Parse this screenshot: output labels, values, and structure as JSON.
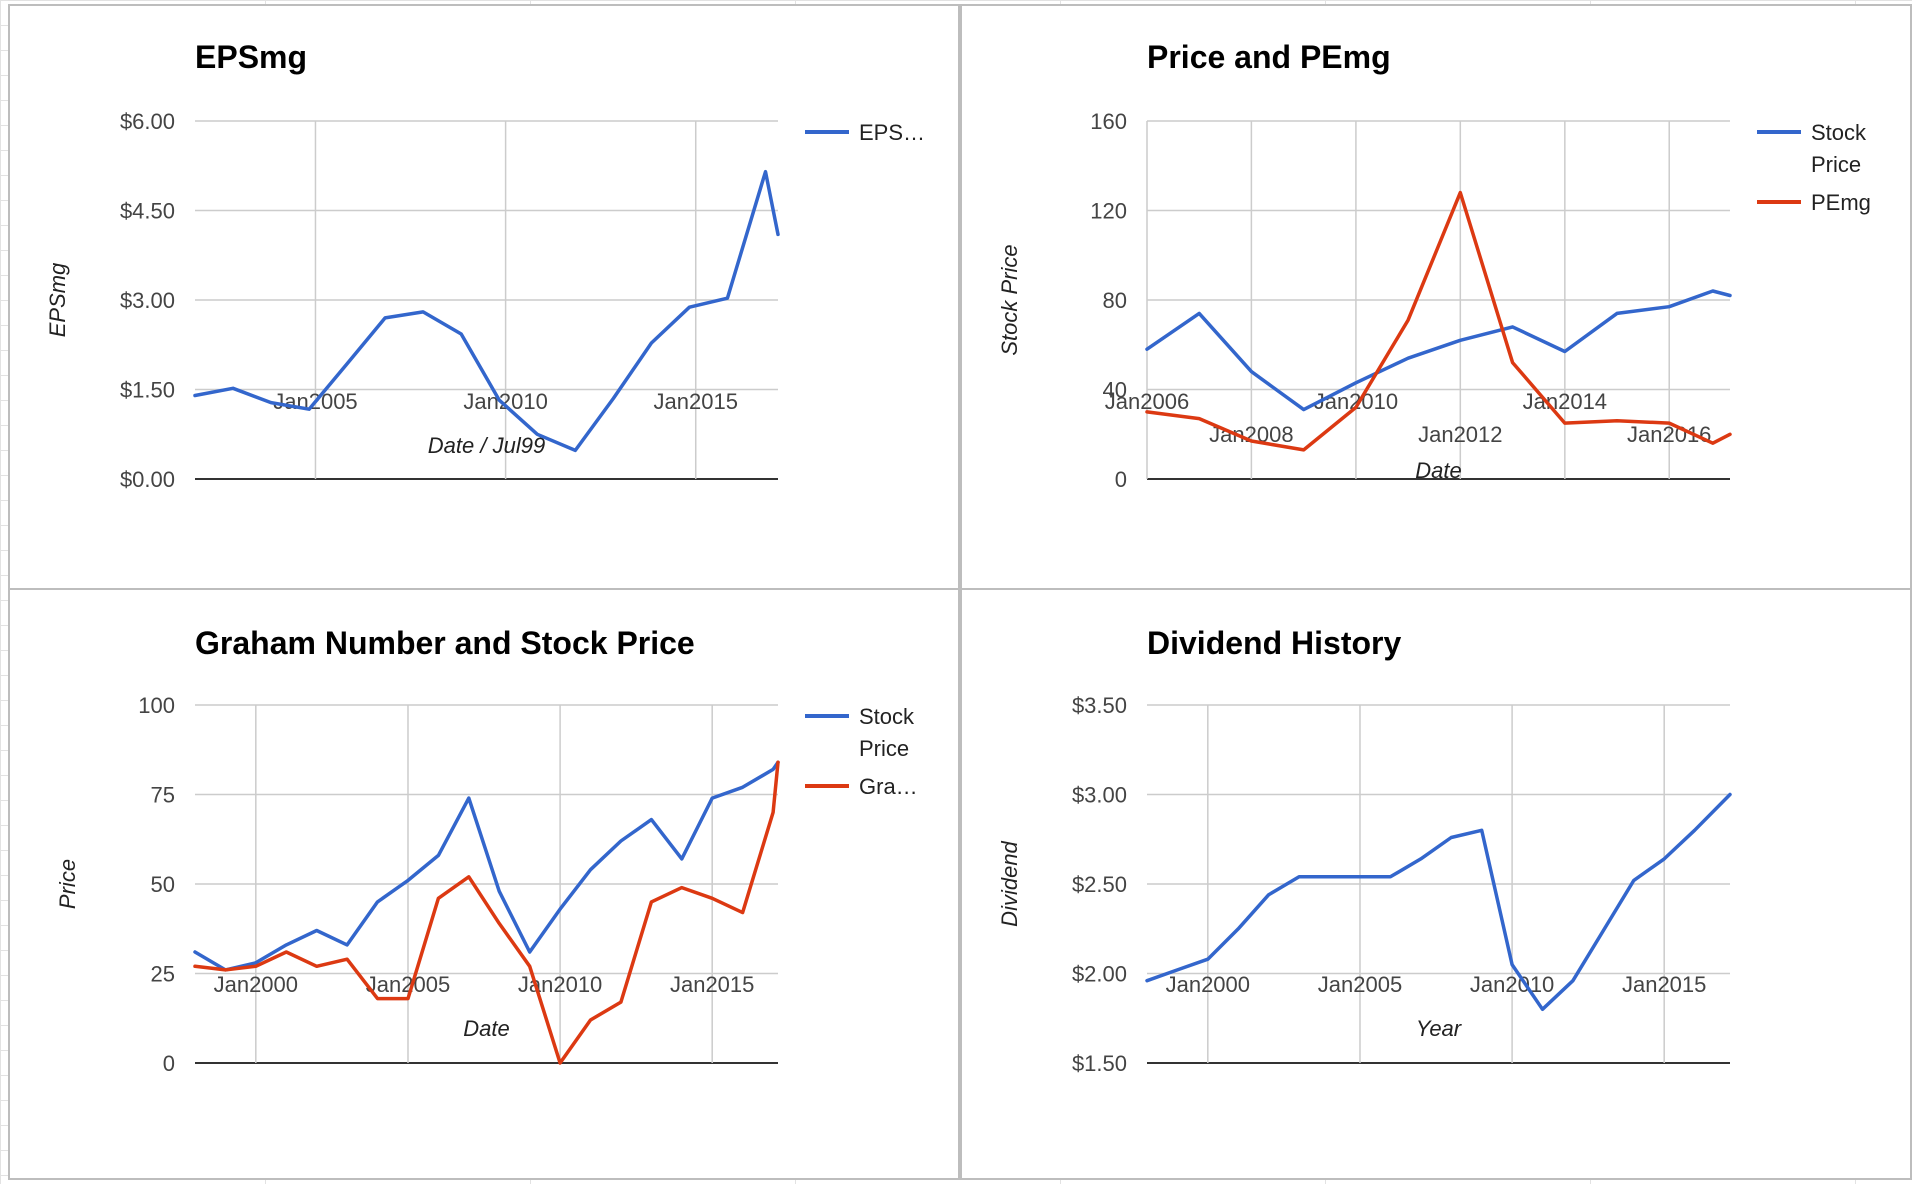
{
  "chart_data": [
    {
      "type": "line",
      "title": "EPSmg",
      "xlabel": "Date / Jul99",
      "ylabel": "EPSmg",
      "x_type": "date",
      "xlim": [
        "2001-11-01",
        "2017-03-01"
      ],
      "ylim": [
        0,
        6
      ],
      "yticks": [
        0,
        1.5,
        3,
        4.5,
        6
      ],
      "ytick_labels": [
        "$0.00",
        "$1.50",
        "$3.00",
        "$4.50",
        "$6.00"
      ],
      "xticks": [
        "2005-01-01",
        "2010-01-01",
        "2015-01-01"
      ],
      "xtick_labels": [
        "Jan2005",
        "Jan2010",
        "Jan2015"
      ],
      "legend": "right",
      "series": [
        {
          "name": "EPS…",
          "color": "#3366cc",
          "x": [
            "2001-11-01",
            "2002-11-01",
            "2003-11-01",
            "2004-11-01",
            "2005-11-01",
            "2006-11-01",
            "2007-11-01",
            "2008-11-01",
            "2009-11-01",
            "2010-11-01",
            "2011-11-01",
            "2012-11-01",
            "2013-11-01",
            "2014-11-01",
            "2015-11-01",
            "2016-11-01",
            "2017-03-01"
          ],
          "values": [
            1.4,
            1.52,
            1.28,
            1.17,
            1.93,
            2.7,
            2.8,
            2.43,
            1.32,
            0.75,
            0.48,
            1.35,
            2.28,
            2.88,
            3.03,
            5.15,
            4.1
          ]
        }
      ]
    },
    {
      "type": "line",
      "title": "Price and PEmg",
      "xlabel": "Date",
      "ylabel": "Stock Price",
      "x_type": "date",
      "xlim": [
        "2006-01-01",
        "2017-03-01"
      ],
      "ylim": [
        0,
        160
      ],
      "yticks": [
        0,
        40,
        80,
        120,
        160
      ],
      "ytick_labels": [
        "0",
        "40",
        "80",
        "120",
        "160"
      ],
      "xticks": [
        "2006-01-01",
        "2008-01-01",
        "2010-01-01",
        "2012-01-01",
        "2014-01-01",
        "2016-01-01"
      ],
      "xtick_labels": [
        "Jan2006",
        "Jan2008",
        "Jan2010",
        "Jan2012",
        "Jan2014",
        "Jan2016"
      ],
      "legend": "right",
      "series": [
        {
          "name": "Stock Price",
          "legend_lines": [
            "Stock",
            "Price"
          ],
          "color": "#3366cc",
          "x": [
            "2006-01-01",
            "2007-01-01",
            "2008-01-01",
            "2009-01-01",
            "2010-01-01",
            "2011-01-01",
            "2012-01-01",
            "2013-01-01",
            "2014-01-01",
            "2015-01-01",
            "2016-01-01",
            "2016-11-01",
            "2017-03-01"
          ],
          "values": [
            58,
            74,
            48,
            31,
            43,
            54,
            62,
            68,
            57,
            74,
            77,
            84,
            82
          ]
        },
        {
          "name": "PEmg",
          "legend_lines": [
            "PEmg"
          ],
          "color": "#dc3912",
          "x": [
            "2006-01-01",
            "2007-01-01",
            "2008-01-01",
            "2009-01-01",
            "2010-01-01",
            "2011-01-01",
            "2012-01-01",
            "2013-01-01",
            "2014-01-01",
            "2015-01-01",
            "2016-01-01",
            "2016-11-01",
            "2017-03-01"
          ],
          "values": [
            30,
            27,
            17,
            13,
            32,
            71,
            128,
            52,
            25,
            26,
            25,
            16,
            20
          ]
        }
      ]
    },
    {
      "type": "line",
      "title": "Graham Number and Stock Price",
      "xlabel": "Date",
      "ylabel": "Price",
      "x_type": "date",
      "xlim": [
        "1998-01-01",
        "2017-03-01"
      ],
      "ylim": [
        0,
        100
      ],
      "yticks": [
        0,
        25,
        50,
        75,
        100
      ],
      "ytick_labels": [
        "0",
        "25",
        "50",
        "75",
        "100"
      ],
      "xticks": [
        "2000-01-01",
        "2005-01-01",
        "2010-01-01",
        "2015-01-01"
      ],
      "xtick_labels": [
        "Jan2000",
        "Jan2005",
        "Jan2010",
        "Jan2015"
      ],
      "legend": "right",
      "series": [
        {
          "name": "Stock Price",
          "legend_lines": [
            "Stock",
            "Price"
          ],
          "color": "#3366cc",
          "x": [
            "1998-01-01",
            "1999-01-01",
            "2000-01-01",
            "2001-01-01",
            "2002-01-01",
            "2003-01-01",
            "2004-01-01",
            "2005-01-01",
            "2006-01-01",
            "2007-01-01",
            "2008-01-01",
            "2009-01-01",
            "2010-01-01",
            "2011-01-01",
            "2012-01-01",
            "2013-01-01",
            "2014-01-01",
            "2015-01-01",
            "2016-01-01",
            "2017-01-01",
            "2017-03-01"
          ],
          "values": [
            31,
            26,
            28,
            33,
            37,
            33,
            45,
            51,
            58,
            74,
            48,
            31,
            43,
            54,
            62,
            68,
            57,
            74,
            77,
            82,
            84
          ]
        },
        {
          "name": "Gra…",
          "legend_lines": [
            "Gra…"
          ],
          "color": "#dc3912",
          "x": [
            "1998-01-01",
            "1999-01-01",
            "2000-01-01",
            "2001-01-01",
            "2002-01-01",
            "2003-01-01",
            "2004-01-01",
            "2005-01-01",
            "2006-01-01",
            "2007-01-01",
            "2008-01-01",
            "2009-01-01",
            "2010-01-01",
            "2011-01-01",
            "2012-01-01",
            "2013-01-01",
            "2014-01-01",
            "2015-01-01",
            "2016-01-01",
            "2017-01-01",
            "2017-03-01"
          ],
          "values": [
            27,
            26,
            27,
            31,
            27,
            29,
            18,
            18,
            46,
            52,
            39,
            27,
            0,
            12,
            17,
            45,
            49,
            46,
            42,
            70,
            84
          ]
        }
      ]
    },
    {
      "type": "line",
      "title": "Dividend History",
      "xlabel": "Year",
      "ylabel": "Dividend",
      "x_type": "date",
      "xlim": [
        "1998-01-01",
        "2017-03-01"
      ],
      "ylim": [
        1.5,
        3.5
      ],
      "yticks": [
        1.5,
        2,
        2.5,
        3,
        3.5
      ],
      "ytick_labels": [
        "$1.50",
        "$2.00",
        "$2.50",
        "$3.00",
        "$3.50"
      ],
      "xticks": [
        "2000-01-01",
        "2005-01-01",
        "2010-01-01",
        "2015-01-01"
      ],
      "xtick_labels": [
        "Jan2000",
        "Jan2005",
        "Jan2010",
        "Jan2015"
      ],
      "legend": "none",
      "series": [
        {
          "color": "#3366cc",
          "x": [
            "1998-01-01",
            "1999-01-01",
            "2000-01-01",
            "2001-01-01",
            "2002-01-01",
            "2003-01-01",
            "2004-01-01",
            "2005-01-01",
            "2006-01-01",
            "2007-01-01",
            "2008-01-01",
            "2009-01-01",
            "2010-01-01",
            "2011-01-01",
            "2012-01-01",
            "2013-01-01",
            "2014-01-01",
            "2015-01-01",
            "2016-01-01",
            "2017-03-01"
          ],
          "values": [
            1.96,
            2.02,
            2.08,
            2.25,
            2.44,
            2.54,
            2.54,
            2.54,
            2.54,
            2.64,
            2.76,
            2.8,
            2.05,
            1.8,
            1.96,
            2.24,
            2.52,
            2.64,
            2.8,
            3.0
          ]
        }
      ]
    }
  ]
}
